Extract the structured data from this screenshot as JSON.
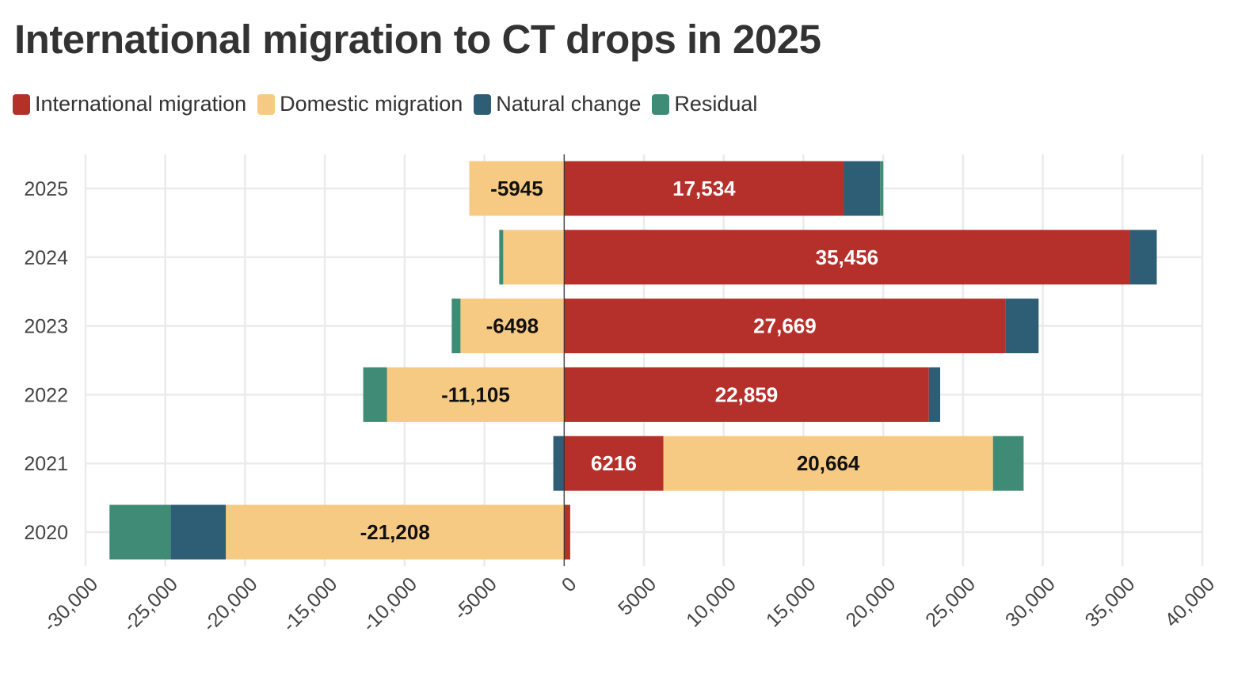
{
  "title": "International migration to CT drops in 2025",
  "legend": [
    {
      "key": "intl",
      "label": "International migration",
      "color": "#b5302a"
    },
    {
      "key": "dom",
      "label": "Domestic migration",
      "color": "#f6ca82"
    },
    {
      "key": "nat",
      "label": "Natural change",
      "color": "#2e5e76"
    },
    {
      "key": "res",
      "label": "Residual",
      "color": "#3f8b75"
    }
  ],
  "chart_data": {
    "type": "bar",
    "orientation": "horizontal-stacked-diverging",
    "title": "International migration to CT drops in 2025",
    "xlabel": "",
    "ylabel": "",
    "xlim": [
      -30000,
      40000
    ],
    "x_ticks": [
      -30000,
      -25000,
      -20000,
      -15000,
      -10000,
      -5000,
      0,
      5000,
      10000,
      15000,
      20000,
      25000,
      30000,
      35000,
      40000
    ],
    "x_tick_labels": [
      "-30,000",
      "-25,000",
      "-20,000",
      "-15,000",
      "-10,000",
      "-5000",
      "0",
      "5000",
      "10,000",
      "15,000",
      "20,000",
      "25,000",
      "30,000",
      "35,000",
      "40,000"
    ],
    "grid": true,
    "legend_position": "top-left",
    "categories": [
      "2025",
      "2024",
      "2023",
      "2022",
      "2021",
      "2020"
    ],
    "series": [
      {
        "name": "International migration",
        "key": "intl",
        "values": [
          17534,
          35456,
          27669,
          22859,
          6216,
          380
        ],
        "labels": [
          "17,534",
          "35,456",
          "27,669",
          "22,859",
          "6216",
          ""
        ]
      },
      {
        "name": "Domestic migration",
        "key": "dom",
        "values": [
          -5945,
          -3820,
          -6498,
          -11105,
          20664,
          -21208
        ],
        "labels": [
          "-5945",
          "",
          "-6498",
          "-11,105",
          "20,664",
          "-21,208"
        ]
      },
      {
        "name": "Natural change",
        "key": "nat",
        "values": [
          2270,
          1690,
          2070,
          710,
          -680,
          -3470
        ],
        "labels": [
          "",
          "",
          "",
          "",
          "",
          ""
        ]
      },
      {
        "name": "Residual",
        "key": "res",
        "values": [
          200,
          -250,
          -550,
          -1490,
          1920,
          -3820
        ],
        "labels": [
          "",
          "",
          "",
          "",
          "",
          ""
        ]
      }
    ]
  }
}
